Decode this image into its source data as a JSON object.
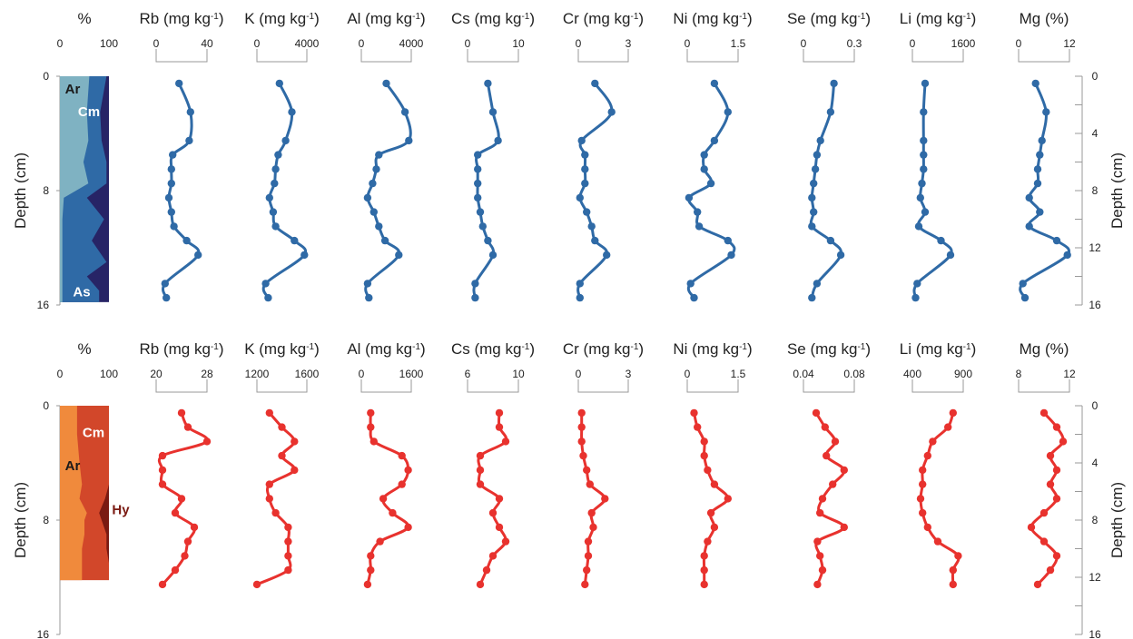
{
  "chart_data": [
    {
      "type": "line",
      "panel": "top",
      "colors": {
        "line": "#2f6aa6",
        "point": "#2f6aa6"
      },
      "ylabel": "Depth (cm)",
      "y_right_label": "Depth (cm)",
      "y_left_ticks": [
        "0",
        "8",
        "16"
      ],
      "y_right_ticks": [
        "0",
        "4",
        "8",
        "12",
        "16"
      ],
      "ylim": [
        0,
        16
      ],
      "composition": {
        "header": "%",
        "ticks": [
          "0",
          "100"
        ],
        "xlim": [
          0,
          100
        ],
        "colors": {
          "Ar": "#7fb2c2",
          "Cm": "#2f6aa6",
          "As": "#272466"
        },
        "labels": [
          {
            "text": "Ar",
            "color": "#1a1a1a"
          },
          {
            "text": "Cm",
            "color": "#ffffff"
          },
          {
            "text": "As",
            "color": "#ffffff"
          }
        ],
        "depth": [
          0,
          2.5,
          4.5,
          6,
          7.5,
          8.5,
          10,
          11.5,
          13,
          14,
          15,
          15.8
        ],
        "ar_upper": [
          60,
          55,
          58,
          48,
          58,
          8,
          5,
          5,
          5,
          5,
          5,
          5
        ],
        "cm_upper": [
          95,
          82,
          85,
          95,
          95,
          55,
          90,
          65,
          95,
          55,
          80,
          80
        ]
      },
      "series": [
        {
          "name": "Rb (mg kg-1)",
          "ticks": [
            "0",
            "40"
          ],
          "xlim": [
            0,
            40
          ],
          "depth": [
            0.5,
            2.5,
            4.5,
            5.5,
            6.5,
            7.5,
            8.5,
            9.5,
            10.5,
            11.5,
            12.5,
            14.5,
            15.5
          ],
          "values": [
            18,
            27,
            26,
            13,
            12,
            12,
            10,
            12,
            14,
            24,
            33,
            7,
            8
          ]
        },
        {
          "name": "K (mg kg-1)",
          "ticks": [
            "0",
            "4000"
          ],
          "xlim": [
            0,
            4000
          ],
          "depth": [
            0.5,
            2.5,
            4.5,
            5.5,
            6.5,
            7.5,
            8.5,
            9.5,
            10.5,
            11.5,
            12.5,
            14.5,
            15.5
          ],
          "values": [
            1800,
            2800,
            2300,
            1700,
            1500,
            1400,
            1000,
            1300,
            1500,
            3000,
            3800,
            700,
            900
          ]
        },
        {
          "name": "Al (mg kg-1)",
          "ticks": [
            "0",
            "4000"
          ],
          "xlim": [
            0,
            4000
          ],
          "depth": [
            0.5,
            2.5,
            4.5,
            5.5,
            6.5,
            7.5,
            8.5,
            9.5,
            10.5,
            11.5,
            12.5,
            14.5,
            15.5
          ],
          "values": [
            2000,
            3500,
            3800,
            1400,
            1200,
            900,
            500,
            1000,
            1400,
            1900,
            3000,
            500,
            600
          ]
        },
        {
          "name": "Cs (mg kg-1)",
          "ticks": [
            "0",
            "10"
          ],
          "xlim": [
            0,
            10
          ],
          "depth": [
            0.5,
            2.5,
            4.5,
            5.5,
            6.5,
            7.5,
            8.5,
            9.5,
            10.5,
            11.5,
            12.5,
            14.5,
            15.5
          ],
          "values": [
            4,
            5,
            6,
            2,
            2,
            2,
            2,
            2.5,
            3,
            4,
            5,
            1.5,
            1.5
          ]
        },
        {
          "name": "Cr (mg kg-1)",
          "ticks": [
            "0",
            "3"
          ],
          "xlim": [
            0,
            3
          ],
          "depth": [
            0.5,
            2.5,
            4.5,
            5.5,
            6.5,
            7.5,
            8.5,
            9.5,
            10.5,
            11.5,
            12.5,
            14.5,
            15.5
          ],
          "values": [
            1,
            2,
            0.2,
            0.4,
            0.4,
            0.4,
            0.1,
            0.5,
            0.8,
            1,
            1.7,
            0.1,
            0.1
          ]
        },
        {
          "name": "Ni (mg kg-1)",
          "ticks": [
            "0",
            "1.5"
          ],
          "xlim": [
            0,
            1.5
          ],
          "depth": [
            0.5,
            2.5,
            4.5,
            5.5,
            6.5,
            7.5,
            8.5,
            9.5,
            10.5,
            11.5,
            12.5,
            14.5,
            15.5
          ],
          "values": [
            0.8,
            1.2,
            0.8,
            0.5,
            0.5,
            0.7,
            0.05,
            0.3,
            0.35,
            1.2,
            1.3,
            0.1,
            0.2
          ]
        },
        {
          "name": "Se (mg kg-1)",
          "ticks": [
            "0",
            "0.3"
          ],
          "xlim": [
            0,
            0.3
          ],
          "depth": [
            0.5,
            2.5,
            4.5,
            5.5,
            6.5,
            7.5,
            8.5,
            9.5,
            10.5,
            11.5,
            12.5,
            14.5,
            15.5
          ],
          "values": [
            0.18,
            0.16,
            0.1,
            0.08,
            0.07,
            0.06,
            0.05,
            0.06,
            0.05,
            0.16,
            0.22,
            0.08,
            0.05
          ]
        },
        {
          "name": "Li (mg kg-1)",
          "ticks": [
            "0",
            "1600"
          ],
          "xlim": [
            0,
            1600
          ],
          "depth": [
            0.5,
            2.5,
            4.5,
            5.5,
            6.5,
            7.5,
            8.5,
            9.5,
            10.5,
            11.5,
            12.5,
            14.5,
            15.5
          ],
          "values": [
            400,
            350,
            350,
            350,
            350,
            300,
            250,
            400,
            200,
            900,
            1200,
            150,
            100
          ]
        },
        {
          "name": "Mg (%)",
          "ticks": [
            "0",
            "12"
          ],
          "xlim": [
            0,
            12
          ],
          "depth": [
            0.5,
            2.5,
            4.5,
            5.5,
            6.5,
            7.5,
            8.5,
            9.5,
            10.5,
            11.5,
            12.5,
            14.5,
            15.5
          ],
          "values": [
            4,
            6.5,
            5.5,
            5,
            4.5,
            4.5,
            2.5,
            5,
            2.5,
            9,
            11.5,
            1,
            1.5
          ]
        }
      ]
    },
    {
      "type": "line",
      "panel": "bottom",
      "colors": {
        "line": "#e8322e",
        "point": "#e8322e"
      },
      "ylabel": "Depth (cm)",
      "y_right_label": "Depth (cm)",
      "y_left_ticks": [
        "0",
        "8",
        "16"
      ],
      "y_right_ticks": [
        "0",
        "4",
        "8",
        "12",
        "16"
      ],
      "ylim": [
        0,
        16
      ],
      "composition": {
        "header": "%",
        "ticks": [
          "0",
          "100"
        ],
        "xlim": [
          0,
          100
        ],
        "colors": {
          "Ar": "#f08a3c",
          "Cm": "#d2472a",
          "Hy": "#7a1a12"
        },
        "labels": [
          {
            "text": "Cm",
            "color": "#ffffff"
          },
          {
            "text": "Ar",
            "color": "#1a1a1a"
          },
          {
            "text": "Hy",
            "color": "#7a1a12"
          }
        ],
        "depth": [
          0,
          2,
          4,
          5.5,
          6.5,
          7.5,
          8,
          9,
          10,
          11,
          12.2
        ],
        "ar_upper": [
          35,
          35,
          40,
          45,
          40,
          55,
          50,
          50,
          45,
          45,
          45
        ],
        "hy_lower": [
          100,
          100,
          100,
          100,
          92,
          80,
          85,
          95,
          95,
          100,
          100
        ]
      },
      "series": [
        {
          "name": "Rb (mg kg-1)",
          "ticks": [
            "20",
            "28"
          ],
          "xlim": [
            20,
            28
          ],
          "depth": [
            0.5,
            1.5,
            2.5,
            3.5,
            4.5,
            5.5,
            6.5,
            7.5,
            8.5,
            9.5,
            10.5,
            11.5,
            12.5
          ],
          "values": [
            24,
            25,
            28,
            21,
            21,
            21,
            24,
            23,
            26,
            25,
            24.5,
            23,
            21
          ]
        },
        {
          "name": "K (mg kg-1)",
          "ticks": [
            "1200",
            "1600"
          ],
          "xlim": [
            1200,
            1600
          ],
          "depth": [
            0.5,
            1.5,
            2.5,
            3.5,
            4.5,
            5.5,
            6.5,
            7.5,
            8.5,
            9.5,
            10.5,
            11.5,
            12.5
          ],
          "values": [
            1300,
            1400,
            1500,
            1400,
            1500,
            1300,
            1300,
            1350,
            1450,
            1450,
            1450,
            1450,
            1200
          ]
        },
        {
          "name": "Al (mg kg-1)",
          "ticks": [
            "0",
            "1600"
          ],
          "xlim": [
            0,
            1600
          ],
          "depth": [
            0.5,
            1.5,
            2.5,
            3.5,
            4.5,
            5.5,
            6.5,
            7.5,
            8.5,
            9.5,
            10.5,
            11.5,
            12.5
          ],
          "values": [
            300,
            300,
            400,
            1300,
            1500,
            1300,
            700,
            1000,
            1500,
            600,
            300,
            300,
            200
          ]
        },
        {
          "name": "Cs (mg kg-1)",
          "ticks": [
            "6",
            "10"
          ],
          "xlim": [
            6,
            10
          ],
          "depth": [
            0.5,
            1.5,
            2.5,
            3.5,
            4.5,
            5.5,
            6.5,
            7.5,
            8.5,
            9.5,
            10.5,
            11.5,
            12.5
          ],
          "values": [
            8.5,
            8.5,
            9,
            7,
            7,
            7,
            8.5,
            8,
            8.5,
            9,
            8,
            7.5,
            7
          ]
        },
        {
          "name": "Cr (mg kg-1)",
          "ticks": [
            "0",
            "3"
          ],
          "xlim": [
            0,
            3
          ],
          "depth": [
            0.5,
            1.5,
            2.5,
            3.5,
            4.5,
            5.5,
            6.5,
            7.5,
            8.5,
            9.5,
            10.5,
            11.5,
            12.5
          ],
          "values": [
            0.2,
            0.2,
            0.2,
            0.3,
            0.5,
            0.7,
            1.6,
            0.8,
            0.9,
            0.6,
            0.6,
            0.5,
            0.4
          ]
        },
        {
          "name": "Ni (mg kg-1)",
          "ticks": [
            "0",
            "1.5"
          ],
          "xlim": [
            0,
            1.5
          ],
          "depth": [
            0.5,
            1.5,
            2.5,
            3.5,
            4.5,
            5.5,
            6.5,
            7.5,
            8.5,
            9.5,
            10.5,
            11.5,
            12.5
          ],
          "values": [
            0.2,
            0.3,
            0.5,
            0.5,
            0.6,
            0.8,
            1.2,
            0.7,
            0.8,
            0.6,
            0.5,
            0.5,
            0.5
          ]
        },
        {
          "name": "Se (mg kg-1)",
          "ticks": [
            "0.04",
            "0.08"
          ],
          "xlim": [
            0.04,
            0.08
          ],
          "depth": [
            0.5,
            1.5,
            2.5,
            3.5,
            4.5,
            5.5,
            6.5,
            7.5,
            8.5,
            9.5,
            10.5,
            11.5,
            12.5
          ],
          "values": [
            0.05,
            0.057,
            0.065,
            0.058,
            0.072,
            0.063,
            0.055,
            0.053,
            0.072,
            0.051,
            0.053,
            0.055,
            0.051
          ]
        },
        {
          "name": "Li (mg kg-1)",
          "ticks": [
            "400",
            "900"
          ],
          "xlim": [
            400,
            900
          ],
          "depth": [
            0.5,
            1.5,
            2.5,
            3.5,
            4.5,
            5.5,
            6.5,
            7.5,
            8.5,
            9.5,
            10.5,
            11.5,
            12.5
          ],
          "values": [
            800,
            750,
            600,
            550,
            500,
            500,
            480,
            500,
            550,
            650,
            850,
            800,
            800
          ]
        },
        {
          "name": "Mg (%)",
          "ticks": [
            "8",
            "12"
          ],
          "xlim": [
            8,
            12
          ],
          "depth": [
            0.5,
            1.5,
            2.5,
            3.5,
            4.5,
            5.5,
            6.5,
            7.5,
            8.5,
            9.5,
            10.5,
            11.5,
            12.5
          ],
          "values": [
            10,
            11,
            11.5,
            10.5,
            11,
            10.5,
            11,
            10,
            9,
            10,
            11,
            10.5,
            9.5
          ]
        }
      ]
    }
  ]
}
